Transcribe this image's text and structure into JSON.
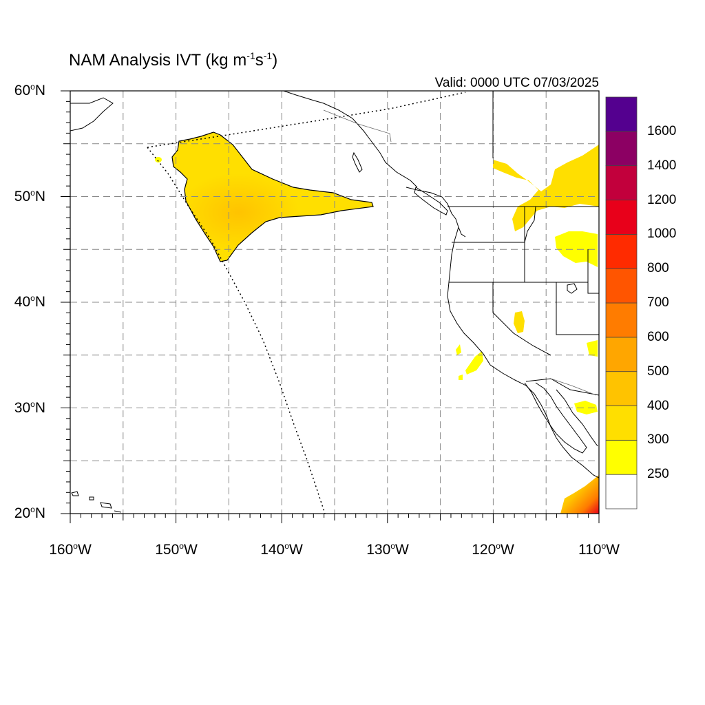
{
  "title": {
    "main": "NAM Analysis IVT (kg m",
    "sup1": "-1",
    "mid": "s",
    "sup2": "-1",
    "end": ")"
  },
  "valid_text": "Valid: 0000 UTC 07/03/2025",
  "map": {
    "projection": "lat-lon",
    "lon_range": [
      -160,
      -110
    ],
    "lat_range": [
      20,
      60
    ],
    "grid": "dashed every 5 degrees",
    "lat_labels": [
      {
        "deg": "60",
        "hemi": "N"
      },
      {
        "deg": "50",
        "hemi": "N"
      },
      {
        "deg": "40",
        "hemi": "N"
      },
      {
        "deg": "30",
        "hemi": "N"
      },
      {
        "deg": "20",
        "hemi": "N"
      }
    ],
    "lon_labels": [
      {
        "deg": "160",
        "hemi": "W"
      },
      {
        "deg": "150",
        "hemi": "W"
      },
      {
        "deg": "140",
        "hemi": "W"
      },
      {
        "deg": "130",
        "hemi": "W"
      },
      {
        "deg": "120",
        "hemi": "W"
      },
      {
        "deg": "110",
        "hemi": "W"
      }
    ]
  },
  "colorbar": {
    "colors": [
      "#ffffff",
      "#ffff00",
      "#ffdf00",
      "#ffc300",
      "#ffa600",
      "#ff7c00",
      "#ff5500",
      "#ff2b00",
      "#e8001a",
      "#c2003c",
      "#8c0063",
      "#54008f"
    ],
    "labels": [
      "250",
      "300",
      "400",
      "500",
      "600",
      "700",
      "800",
      "1000",
      "1200",
      "1400",
      "1600"
    ]
  },
  "legend_levels": {
    "min": 250,
    "max": 1600
  }
}
